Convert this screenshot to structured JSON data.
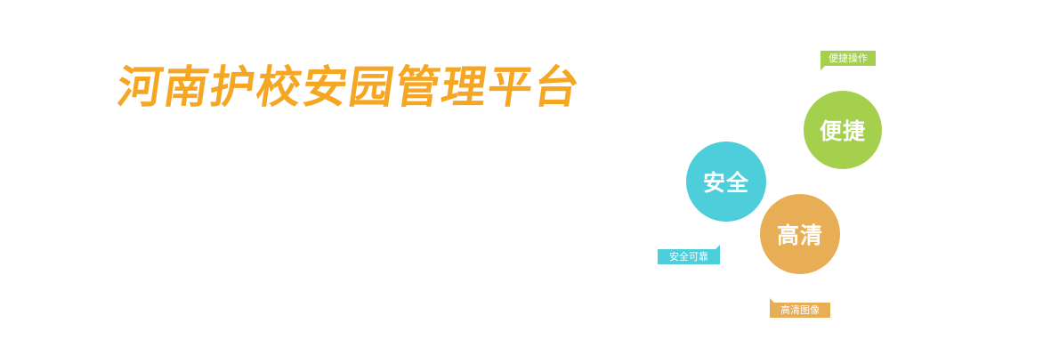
{
  "header": {
    "title": "河南护校安园管理平台",
    "title_color": "#f5a623"
  },
  "features": {
    "convenient": {
      "circle_label": "便捷",
      "tag_label": "便捷操作",
      "color": "#a5d04e"
    },
    "safety": {
      "circle_label": "安全",
      "tag_label": "安全可靠",
      "color": "#4ecddb"
    },
    "hd": {
      "circle_label": "高清",
      "tag_label": "高清图像",
      "color": "#e8ae56"
    }
  }
}
